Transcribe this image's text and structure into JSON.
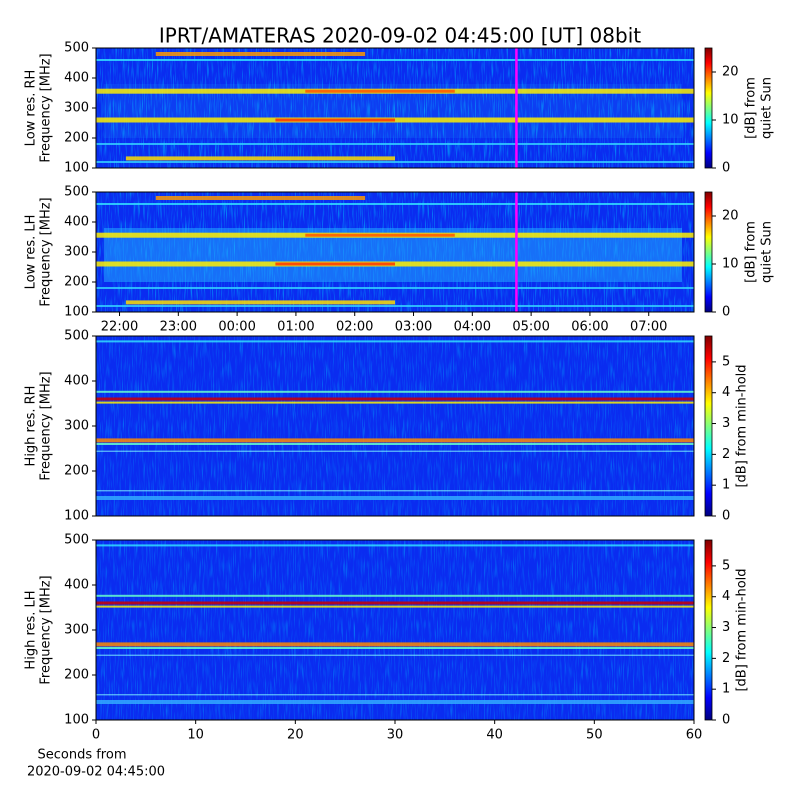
{
  "title": "IPRT/AMATERAS 2020-09-02 04:45:00 [UT]   08bit",
  "chart_data": [
    {
      "type": "heatmap",
      "ylabel": [
        "Low res. RH",
        "Frequency [MHz]"
      ],
      "ylim": [
        100,
        500
      ],
      "yticks": [
        100,
        200,
        300,
        400,
        500
      ],
      "xlim": [
        21.6,
        31.77
      ],
      "marker_x": 28.75,
      "marker_color": "#ff00ff",
      "colorbar": {
        "label": [
          "[dB] from",
          "quiet Sun"
        ],
        "lim": [
          0,
          25
        ],
        "ticks": [
          0,
          10,
          20
        ]
      }
    },
    {
      "type": "heatmap",
      "ylabel": [
        "Low res. LH",
        "Frequency [MHz]"
      ],
      "ylim": [
        100,
        500
      ],
      "yticks": [
        100,
        200,
        300,
        400,
        500
      ],
      "xlim": [
        21.6,
        31.77
      ],
      "marker_x": 28.75,
      "marker_color": "#ff00ff",
      "xticks": [
        {
          "value": 22,
          "label": "22:00"
        },
        {
          "value": 23,
          "label": "23:00"
        },
        {
          "value": 24,
          "label": "00:00"
        },
        {
          "value": 25,
          "label": "01:00"
        },
        {
          "value": 26,
          "label": "02:00"
        },
        {
          "value": 27,
          "label": "03:00"
        },
        {
          "value": 28,
          "label": "04:00"
        },
        {
          "value": 29,
          "label": "05:00"
        },
        {
          "value": 30,
          "label": "06:00"
        },
        {
          "value": 31,
          "label": "07:00"
        }
      ],
      "colorbar": {
        "label": [
          "[dB] from",
          "quiet Sun"
        ],
        "lim": [
          0,
          25
        ],
        "ticks": [
          0,
          10,
          20
        ]
      }
    },
    {
      "type": "heatmap",
      "ylabel": [
        "High res. RH",
        "Frequency [MHz]"
      ],
      "ylim": [
        100,
        500
      ],
      "yticks": [
        100,
        200,
        300,
        400,
        500
      ],
      "xlim": [
        0,
        60
      ],
      "colorbar": {
        "label": [
          "[dB] from min-hold"
        ],
        "lim": [
          0,
          5.84
        ],
        "ticks": [
          0,
          1,
          2,
          3,
          4,
          5
        ]
      }
    },
    {
      "type": "heatmap",
      "ylabel": [
        "High res. LH",
        "Frequency [MHz]"
      ],
      "ylim": [
        100,
        500
      ],
      "yticks": [
        100,
        200,
        300,
        400,
        500
      ],
      "xlim": [
        0,
        60
      ],
      "xticks": [
        0,
        10,
        20,
        30,
        40,
        50,
        60
      ],
      "xlabel": [
        "Seconds from",
        "2020-09-02 04:45:00"
      ],
      "colorbar": {
        "label": [
          "[dB] from min-hold"
        ],
        "lim": [
          0,
          5.84
        ],
        "ticks": [
          0,
          1,
          2,
          3,
          4,
          5
        ]
      }
    }
  ]
}
